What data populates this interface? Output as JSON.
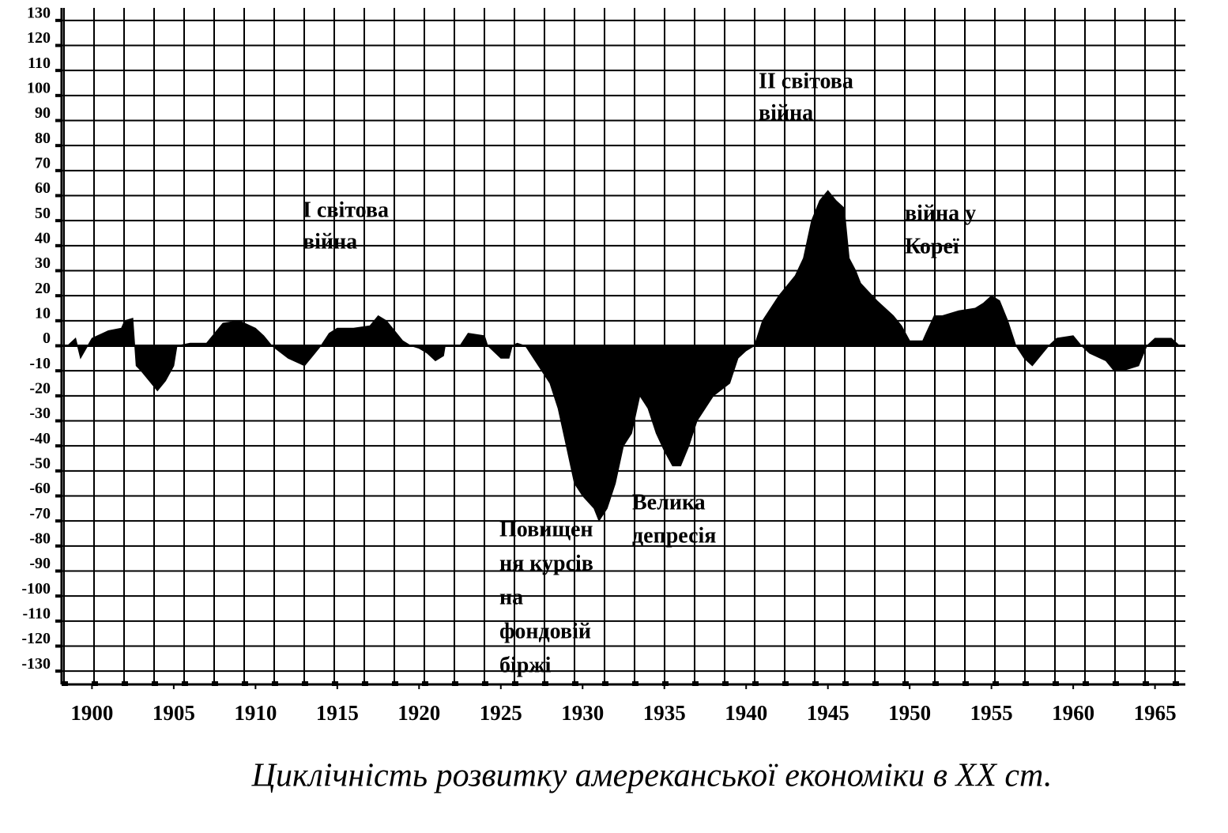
{
  "chart_data": {
    "type": "area",
    "title": "Циклічність розвитку амереканської економіки в XX ст.",
    "color": "#000000",
    "x": [
      1898.5,
      1899,
      1899.3,
      1900,
      1901,
      1901.8,
      1902,
      1902.5,
      1902.7,
      1903,
      1904,
      1904.5,
      1905,
      1905.2,
      1906,
      1907,
      1907.5,
      1908,
      1909,
      1910,
      1910.5,
      1911,
      1912,
      1913,
      1913.5,
      1914,
      1914.5,
      1915,
      1916,
      1917,
      1917.5,
      1918,
      1918.5,
      1919,
      1919.5,
      1920,
      1920.5,
      1921,
      1921.5,
      1921.6,
      1922.5,
      1923,
      1924,
      1924.2,
      1925,
      1925.5,
      1925.7,
      1926,
      1926.5,
      1927,
      1928,
      1928.5,
      1929,
      1929.5,
      1930,
      1930.7,
      1931,
      1931.5,
      1932,
      1932.5,
      1933,
      1933.5,
      1934,
      1934.5,
      1935,
      1935.5,
      1936,
      1936.5,
      1937,
      1938,
      1939,
      1939.5,
      1940,
      1940.5,
      1941,
      1942,
      1943,
      1943.5,
      1944,
      1944.5,
      1945,
      1945.5,
      1946,
      1946.3,
      1946.7,
      1947,
      1948,
      1949,
      1949.5,
      1950,
      1950.8,
      1951,
      1951.5,
      1952,
      1953,
      1954,
      1954.5,
      1955,
      1955.5,
      1956,
      1956.5,
      1957,
      1957.5,
      1958,
      1958.5,
      1959,
      1960,
      1960.5,
      1961,
      1962,
      1962.5,
      1963,
      1964,
      1964.5,
      1965,
      1966,
      1966.5
    ],
    "values": [
      0,
      3,
      -5,
      3,
      6,
      7,
      10,
      11,
      -8,
      -10,
      -18,
      -14,
      -8,
      0,
      1,
      1,
      5,
      9,
      10,
      7,
      4,
      0,
      -5,
      -8,
      -4,
      0,
      5,
      7,
      7,
      8,
      12,
      10,
      6,
      2,
      0,
      -1,
      -3,
      -6,
      -4,
      0,
      0,
      5,
      4,
      0,
      -5,
      -5,
      0,
      1,
      0,
      -5,
      -15,
      -25,
      -40,
      -55,
      -60,
      -65,
      -70,
      -65,
      -55,
      -40,
      -35,
      -20,
      -25,
      -35,
      -42,
      -48,
      -48,
      -40,
      -30,
      -20,
      -15,
      -5,
      -2,
      0,
      10,
      20,
      28,
      35,
      50,
      58,
      62,
      58,
      55,
      35,
      30,
      25,
      18,
      12,
      8,
      2,
      2,
      5,
      12,
      12,
      14,
      15,
      17,
      20,
      18,
      10,
      0,
      -5,
      -8,
      -4,
      0,
      3,
      4,
      0,
      -3,
      -6,
      -10,
      -10,
      -8,
      0,
      3,
      3,
      0
    ],
    "xlim": [
      1898,
      1967
    ],
    "xticks": [
      1900,
      1905,
      1910,
      1915,
      1920,
      1925,
      1930,
      1935,
      1940,
      1945,
      1950,
      1955,
      1960,
      1965
    ],
    "ylim": [
      -135,
      135
    ],
    "yticks": [
      -130,
      -120,
      -110,
      -100,
      -90,
      -80,
      -70,
      -60,
      -50,
      -40,
      -30,
      -20,
      -10,
      0,
      10,
      20,
      30,
      40,
      50,
      60,
      70,
      80,
      90,
      100,
      110,
      120,
      130
    ],
    "grid": true,
    "annotations": [
      {
        "lines": [
          "I світова",
          "війна"
        ]
      },
      {
        "lines": [
          "II світова",
          "війна"
        ]
      },
      {
        "lines": [
          "війна у",
          "Кореї"
        ]
      },
      {
        "lines": [
          "Велика",
          "депресія"
        ]
      },
      {
        "lines": [
          "Повищен",
          "ня курсів",
          "на",
          "фондовій",
          "біржі"
        ]
      }
    ]
  }
}
